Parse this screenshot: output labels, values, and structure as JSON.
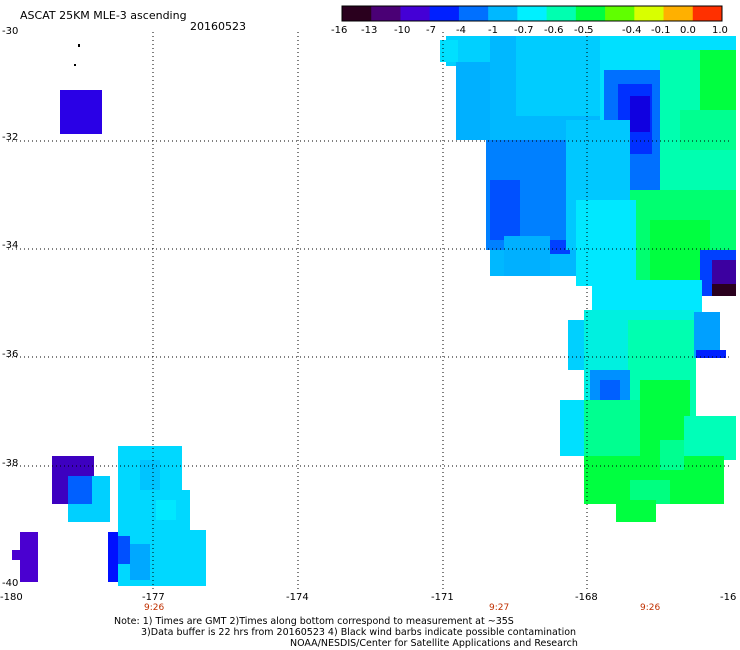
{
  "header": {
    "title": "ASCAT 25KM MLE-3 ascending",
    "date": "20160523"
  },
  "colorbar": {
    "labels": [
      "-16",
      "-13",
      "-10",
      "-7",
      "-4",
      "-1",
      "-0.7",
      "-0.6",
      "-0.5",
      "-0.4",
      "-0.1",
      "0.0",
      "1.0"
    ],
    "colors": [
      "#2a001e",
      "#4a0075",
      "#4400d6",
      "#0020ff",
      "#0070ff",
      "#00b8ff",
      "#00f0ff",
      "#00ffb0",
      "#00ff40",
      "#60ff00",
      "#d8ff00",
      "#ffb000",
      "#ff3000"
    ]
  },
  "axes": {
    "lat_labels": [
      "-30",
      "-32",
      "-34",
      "-36",
      "-38",
      "-40"
    ],
    "lon_labels": [
      "-180",
      "-177",
      "-174",
      "-171",
      "-168",
      "-16"
    ]
  },
  "times": [
    "9:26",
    "9:27",
    "9:26"
  ],
  "notes": [
    "Note: 1) Times are GMT 2)Times along bottom correspond to measurement at ~35S",
    "3)Data buffer is 22 hrs from 20160523 4) Black wind barbs indicate possible contamination",
    "NOAA/NESDIS/Center for Satellite Applications and Research"
  ]
}
